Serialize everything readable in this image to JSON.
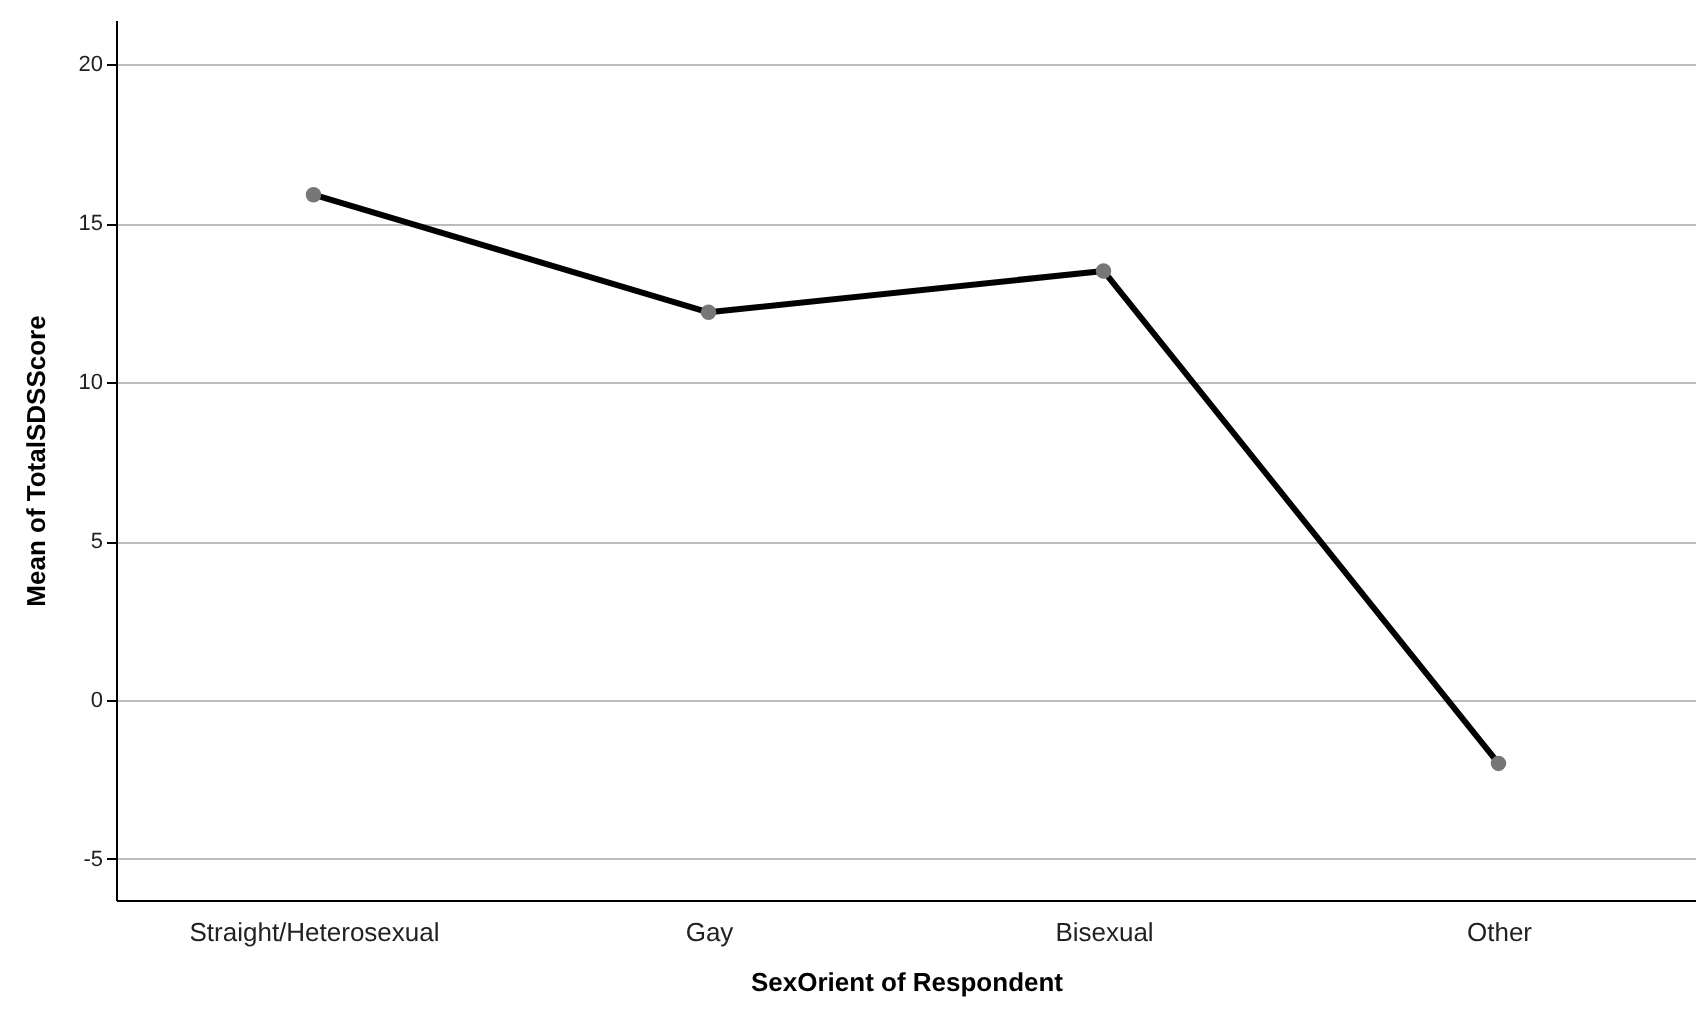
{
  "chart_data": {
    "type": "line",
    "xlabel": "SexOrient of Respondent",
    "ylabel": "Mean of TotalSDSScore",
    "categories": [
      "Straight/Heterosexual",
      "Gay",
      "Bisexual",
      "Other"
    ],
    "series": [
      {
        "color": "#000000",
        "values": [
          15.9,
          12.2,
          13.5,
          -2.0
        ]
      }
    ],
    "ylim": [
      -6.3,
      21.4
    ],
    "yticks": [
      -5,
      0,
      5,
      10,
      15,
      20
    ],
    "grid": "y",
    "marker": "circle",
    "line_style": "solid"
  }
}
